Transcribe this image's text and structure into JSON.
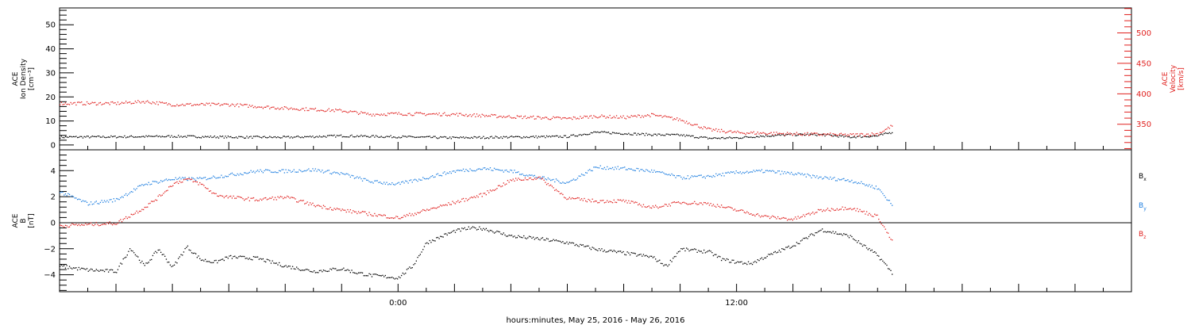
{
  "figure": {
    "xlabel": "hours:minutes, May 25, 2016 - May 26, 2016",
    "x_range_hours": [
      -12,
      26
    ],
    "x_tick_labels": [
      {
        "hour": 0,
        "label": "0:00"
      },
      {
        "hour": 12,
        "label": "12:00"
      }
    ],
    "data_end_hour": 17.5,
    "colors": {
      "black": "#000000",
      "red": "#e0201e",
      "blue": "#1f7fe0",
      "axis_red": "#e0201e"
    }
  },
  "chart_data": [
    {
      "type": "scatter",
      "title": "",
      "ylabel": [
        "ACE",
        "Ion Density",
        "[cm⁻³]"
      ],
      "ylim": [
        -2,
        57
      ],
      "yticks": [
        0,
        10,
        20,
        30,
        40,
        50
      ],
      "series": [
        {
          "name": "",
          "axis": "left",
          "color": "#000000",
          "x": [
            -12,
            -10,
            -8,
            -6,
            -4,
            -2,
            0,
            2,
            4,
            6,
            7,
            8,
            9,
            10,
            11,
            12,
            13,
            14,
            15,
            16,
            17,
            17.5
          ],
          "y": [
            3.5,
            3.6,
            3.8,
            3.5,
            3.4,
            4.0,
            3.6,
            3.2,
            3.5,
            3.7,
            5.5,
            5.0,
            4.5,
            4.3,
            3.0,
            3.2,
            4.0,
            4.5,
            4.5,
            3.5,
            4.0,
            5.5
          ]
        }
      ],
      "right_axis": {
        "ylabel": [
          "ACE",
          "Velocity",
          "[km/s]"
        ],
        "ylim": [
          308,
          541
        ],
        "yticks": [
          350,
          400,
          450,
          500
        ],
        "series": [
          {
            "name": "",
            "axis": "right",
            "color": "#e0201e",
            "x": [
              -12,
              -10,
              -9,
              -8,
              -6,
              -4,
              -2,
              -1,
              0,
              2,
              4,
              6,
              7,
              8,
              9,
              10,
              11,
              12,
              13,
              14,
              15,
              16,
              17,
              17.5
            ],
            "y": [
              385,
              385,
              388,
              383,
              383,
              377,
              373,
              367,
              368,
              367,
              363,
              360,
              364,
              362,
              366,
              358,
              342,
              337,
              336,
              335,
              334,
              333,
              335,
              348
            ]
          }
        ]
      }
    },
    {
      "type": "scatter",
      "title": "",
      "ylabel": [
        "ACE",
        "B",
        "[nT]"
      ],
      "ylim": [
        -5.3,
        5.6
      ],
      "yticks": [
        -4,
        -2,
        0,
        2,
        4
      ],
      "zero_line": true,
      "legend": [
        "Bx",
        "By",
        "Bz"
      ],
      "series": [
        {
          "name": "Bx",
          "color": "#000000",
          "x": [
            -12,
            -11,
            -10,
            -9.5,
            -9,
            -8.5,
            -8,
            -7.5,
            -7,
            -6.5,
            -6,
            -5,
            -4,
            -3,
            -2,
            -1.5,
            -1,
            0,
            0.5,
            1,
            2,
            2.5,
            3,
            4,
            5,
            6,
            7,
            8,
            9,
            9.5,
            10,
            11,
            11.5,
            12,
            12.5,
            13,
            14,
            15,
            16,
            17,
            17.5
          ],
          "y": [
            -3.3,
            -3.6,
            -3.7,
            -1.9,
            -3.3,
            -2.0,
            -3.4,
            -1.8,
            -2.8,
            -3.0,
            -2.6,
            -2.7,
            -3.3,
            -3.7,
            -3.5,
            -3.8,
            -4.0,
            -4.2,
            -3.3,
            -1.5,
            -0.6,
            -0.4,
            -0.4,
            -1.0,
            -1.2,
            -1.5,
            -2.0,
            -2.3,
            -2.6,
            -3.3,
            -2.0,
            -2.2,
            -2.8,
            -3.0,
            -3.1,
            -2.6,
            -1.7,
            -0.5,
            -1.0,
            -2.5,
            -3.8
          ]
        },
        {
          "name": "By",
          "color": "#1f7fe0",
          "x": [
            -12,
            -11,
            -10,
            -9,
            -8,
            -7,
            -6,
            -5,
            -4,
            -3,
            -2,
            -1,
            0,
            1,
            2,
            3,
            4,
            5,
            6,
            7,
            8,
            9,
            10,
            11,
            12,
            13,
            14,
            15,
            16,
            17,
            17.5
          ],
          "y": [
            2.4,
            1.5,
            1.8,
            3.0,
            3.4,
            3.4,
            3.7,
            4.0,
            4.0,
            4.1,
            3.8,
            3.2,
            3.0,
            3.5,
            4.0,
            4.2,
            4.0,
            3.5,
            3.1,
            4.3,
            4.2,
            4.0,
            3.5,
            3.6,
            3.9,
            4.0,
            3.8,
            3.5,
            3.3,
            2.7,
            1.4
          ]
        },
        {
          "name": "Bz",
          "color": "#e0201e",
          "x": [
            -12,
            -11,
            -10,
            -9,
            -8.5,
            -8,
            -7.5,
            -7,
            -6.5,
            -6,
            -5,
            -4,
            -3,
            -2,
            -1,
            0,
            1,
            2,
            3,
            4,
            5,
            6,
            7,
            8,
            9,
            10,
            11,
            12,
            13,
            14,
            15,
            16,
            17,
            17.5
          ],
          "y": [
            -0.2,
            -0.1,
            0.0,
            1.2,
            2.0,
            3.0,
            3.4,
            3.0,
            2.2,
            2.0,
            1.8,
            2.0,
            1.4,
            1.0,
            0.7,
            0.4,
            1.0,
            1.6,
            2.2,
            3.3,
            3.5,
            1.9,
            1.7,
            1.7,
            1.2,
            1.6,
            1.5,
            1.0,
            0.5,
            0.3,
            1.0,
            1.2,
            0.5,
            -1.4
          ]
        }
      ]
    }
  ]
}
